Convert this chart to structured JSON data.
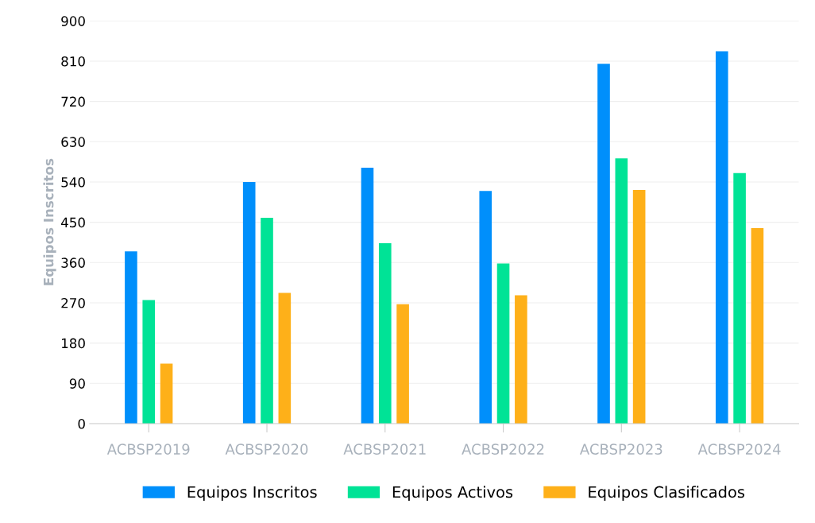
{
  "chart_data": {
    "type": "bar",
    "ylabel": "Equipos Inscritos",
    "categories": [
      "ACBSP2019",
      "ACBSP2020",
      "ACBSP2021",
      "ACBSP2022",
      "ACBSP2023",
      "ACBSP2024"
    ],
    "series": [
      {
        "name": "Equipos Inscritos",
        "color": "#008ffb",
        "values": [
          385,
          540,
          572,
          520,
          804,
          832
        ]
      },
      {
        "name": "Equipos Activos",
        "color": "#00e396",
        "values": [
          276,
          460,
          403,
          358,
          593,
          560
        ]
      },
      {
        "name": "Equipos Clasificados",
        "color": "#feb019",
        "values": [
          134,
          292,
          267,
          287,
          522,
          437
        ]
      }
    ],
    "ylim": [
      0,
      900
    ],
    "yticks": [
      0,
      90,
      180,
      270,
      360,
      450,
      540,
      630,
      720,
      810,
      900
    ],
    "grid": "y",
    "legend": "bottom"
  }
}
